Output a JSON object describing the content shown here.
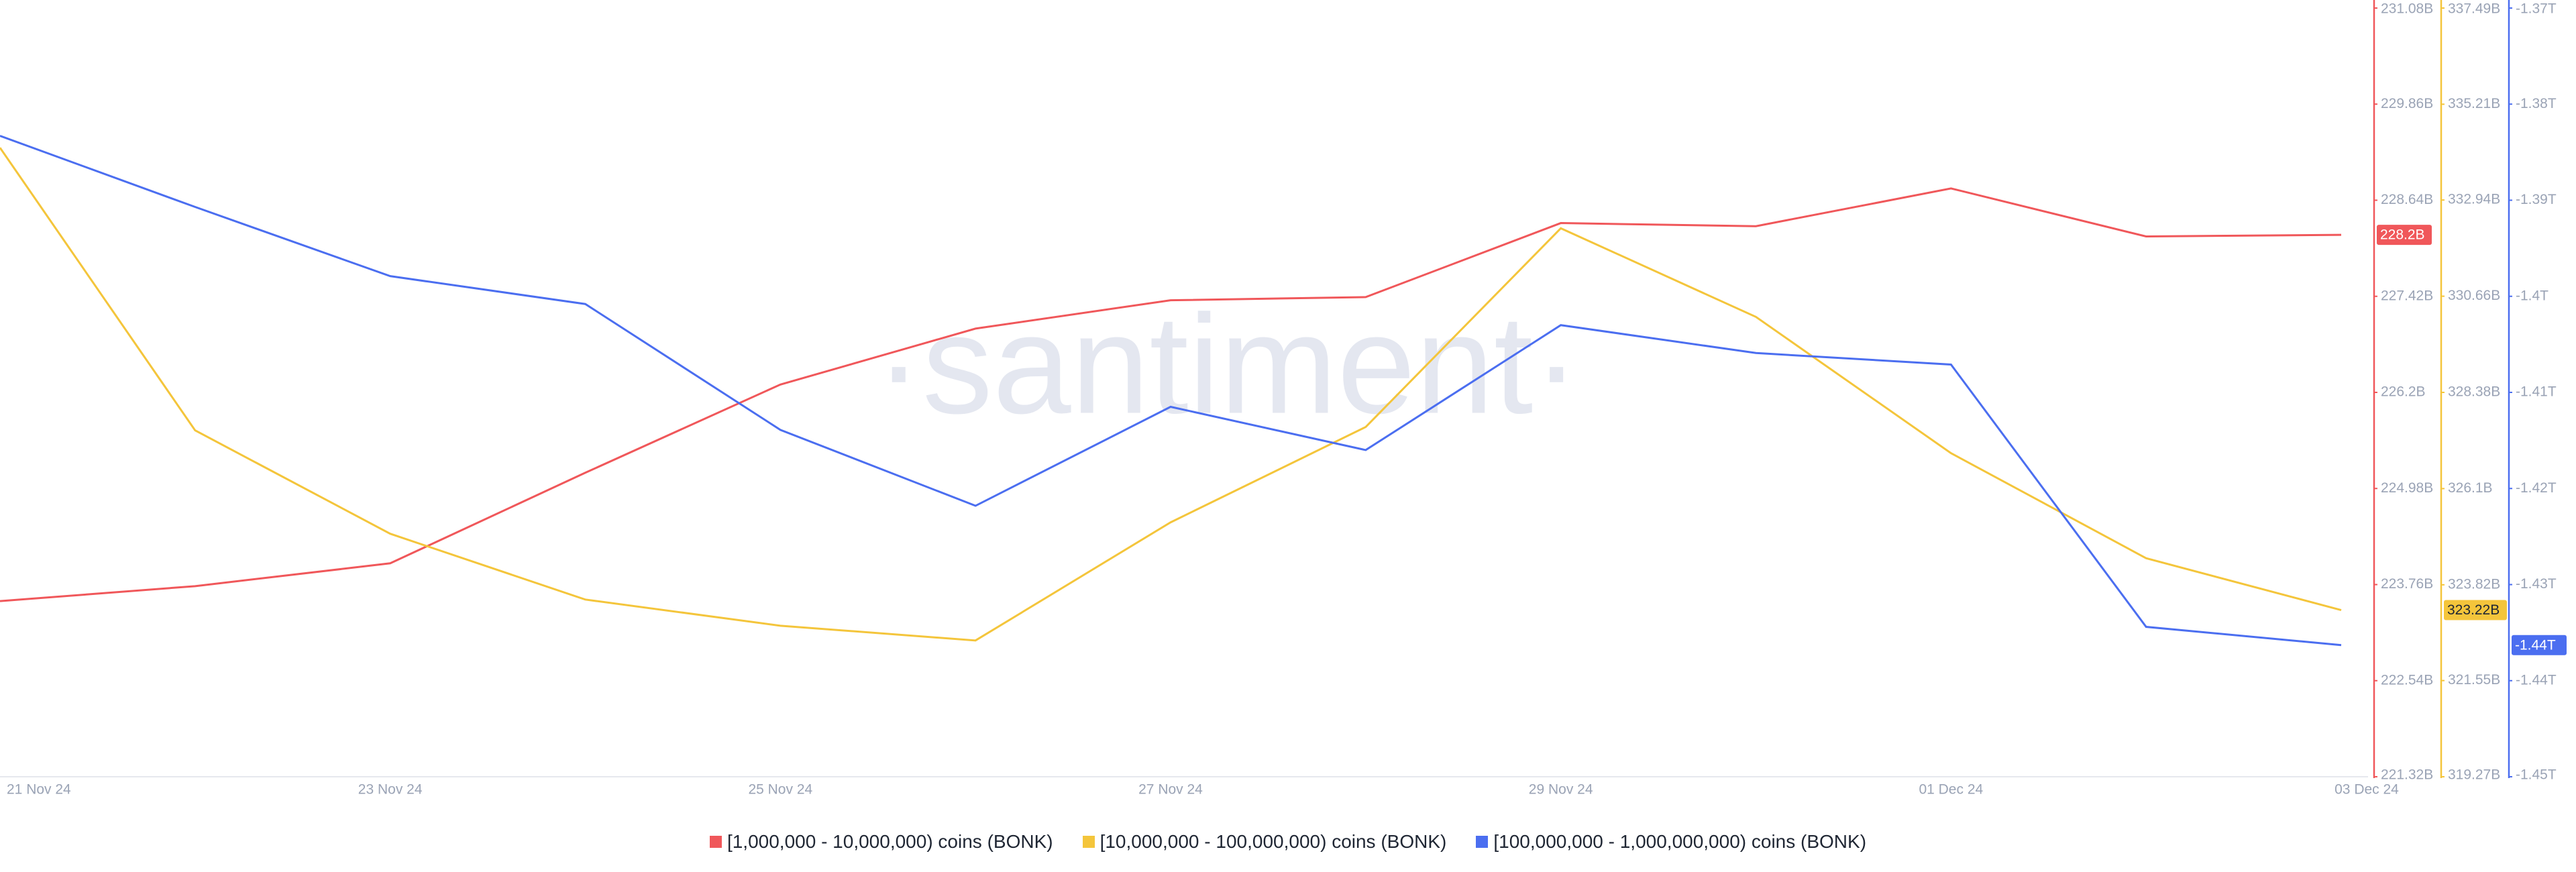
{
  "chart_data": {
    "type": "line",
    "watermark": "·santiment·",
    "categories": [
      "21 Nov 24",
      null,
      "23 Nov 24",
      null,
      "25 Nov 24",
      null,
      "27 Nov 24",
      null,
      "29 Nov 24",
      null,
      "01 Dec 24",
      null,
      "03 Dec 24"
    ],
    "series": [
      {
        "name": "[1,000,000 - 10,000,000) coins (BONK)",
        "color": "#f0575a",
        "axis": "y",
        "values": [
          223.55,
          223.74,
          224.03,
          225.18,
          226.3,
          227.01,
          227.37,
          227.41,
          228.35,
          228.31,
          228.79,
          228.18,
          228.2
        ],
        "value_labels": [
          null,
          null,
          null,
          null,
          null,
          null,
          null,
          null,
          null,
          null,
          null,
          null,
          "228.2B"
        ]
      },
      {
        "name": "[10,000,000 - 100,000,000) coins (BONK)",
        "color": "#f4c53b",
        "axis": "y2",
        "values": [
          334.18,
          327.48,
          325.03,
          323.47,
          322.85,
          322.5,
          325.3,
          327.56,
          332.27,
          330.17,
          326.94,
          324.45,
          323.22
        ],
        "value_labels": [
          null,
          null,
          null,
          null,
          null,
          null,
          null,
          null,
          null,
          null,
          null,
          null,
          "323.22B"
        ]
      },
      {
        "name": "[100,000,000 - 1,000,000,000) coins (BONK)",
        "color": "#4b6ef0",
        "axis": "y3",
        "values": [
          -1.3833,
          -1.3907,
          -1.3979,
          -1.4008,
          -1.4139,
          -1.4218,
          -1.4115,
          -1.416,
          -1.403,
          -1.4059,
          -1.4071,
          -1.4344,
          -1.4363
        ],
        "value_labels": [
          null,
          null,
          null,
          null,
          null,
          null,
          null,
          null,
          null,
          null,
          null,
          null,
          "-1.44T"
        ]
      }
    ],
    "ylim": [
      221.32,
      231.08
    ],
    "yticks": [
      {
        "value": 231.08,
        "label": "231.08B"
      },
      {
        "value": 229.86,
        "label": "229.86B"
      },
      {
        "value": 228.64,
        "label": "228.64B"
      },
      {
        "value": 227.42,
        "label": "227.42B"
      },
      {
        "value": 226.2,
        "label": "226.2B"
      },
      {
        "value": 224.98,
        "label": "224.98B"
      },
      {
        "value": 223.76,
        "label": "223.76B"
      },
      {
        "value": 222.54,
        "label": "222.54B"
      },
      {
        "value": 221.32,
        "label": "221.32B"
      }
    ],
    "y2lim": [
      319.27,
      337.49
    ],
    "y2ticks": [
      {
        "value": 337.49,
        "label": "337.49B"
      },
      {
        "value": 335.21,
        "label": "335.21B"
      },
      {
        "value": 332.94,
        "label": "332.94B"
      },
      {
        "value": 330.66,
        "label": "330.66B"
      },
      {
        "value": 328.38,
        "label": "328.38B"
      },
      {
        "value": 326.1,
        "label": "326.1B"
      },
      {
        "value": 323.82,
        "label": "323.82B"
      },
      {
        "value": 321.55,
        "label": "321.55B"
      },
      {
        "value": 319.27,
        "label": "319.27B"
      }
    ],
    "y3lim": [
      -1.45,
      -1.37
    ],
    "y3ticks": [
      {
        "value": -1.37,
        "label": "-1.37T"
      },
      {
        "value": -1.38,
        "label": "-1.38T"
      },
      {
        "value": -1.39,
        "label": "-1.39T"
      },
      {
        "value": -1.4,
        "label": "-1.4T"
      },
      {
        "value": -1.41,
        "label": "-1.41T"
      },
      {
        "value": -1.42,
        "label": "-1.42T"
      },
      {
        "value": -1.43,
        "label": "-1.43T"
      },
      {
        "value": -1.44,
        "label": "-1.44T"
      },
      {
        "value": -1.45,
        "label": "-1.45T"
      }
    ]
  }
}
